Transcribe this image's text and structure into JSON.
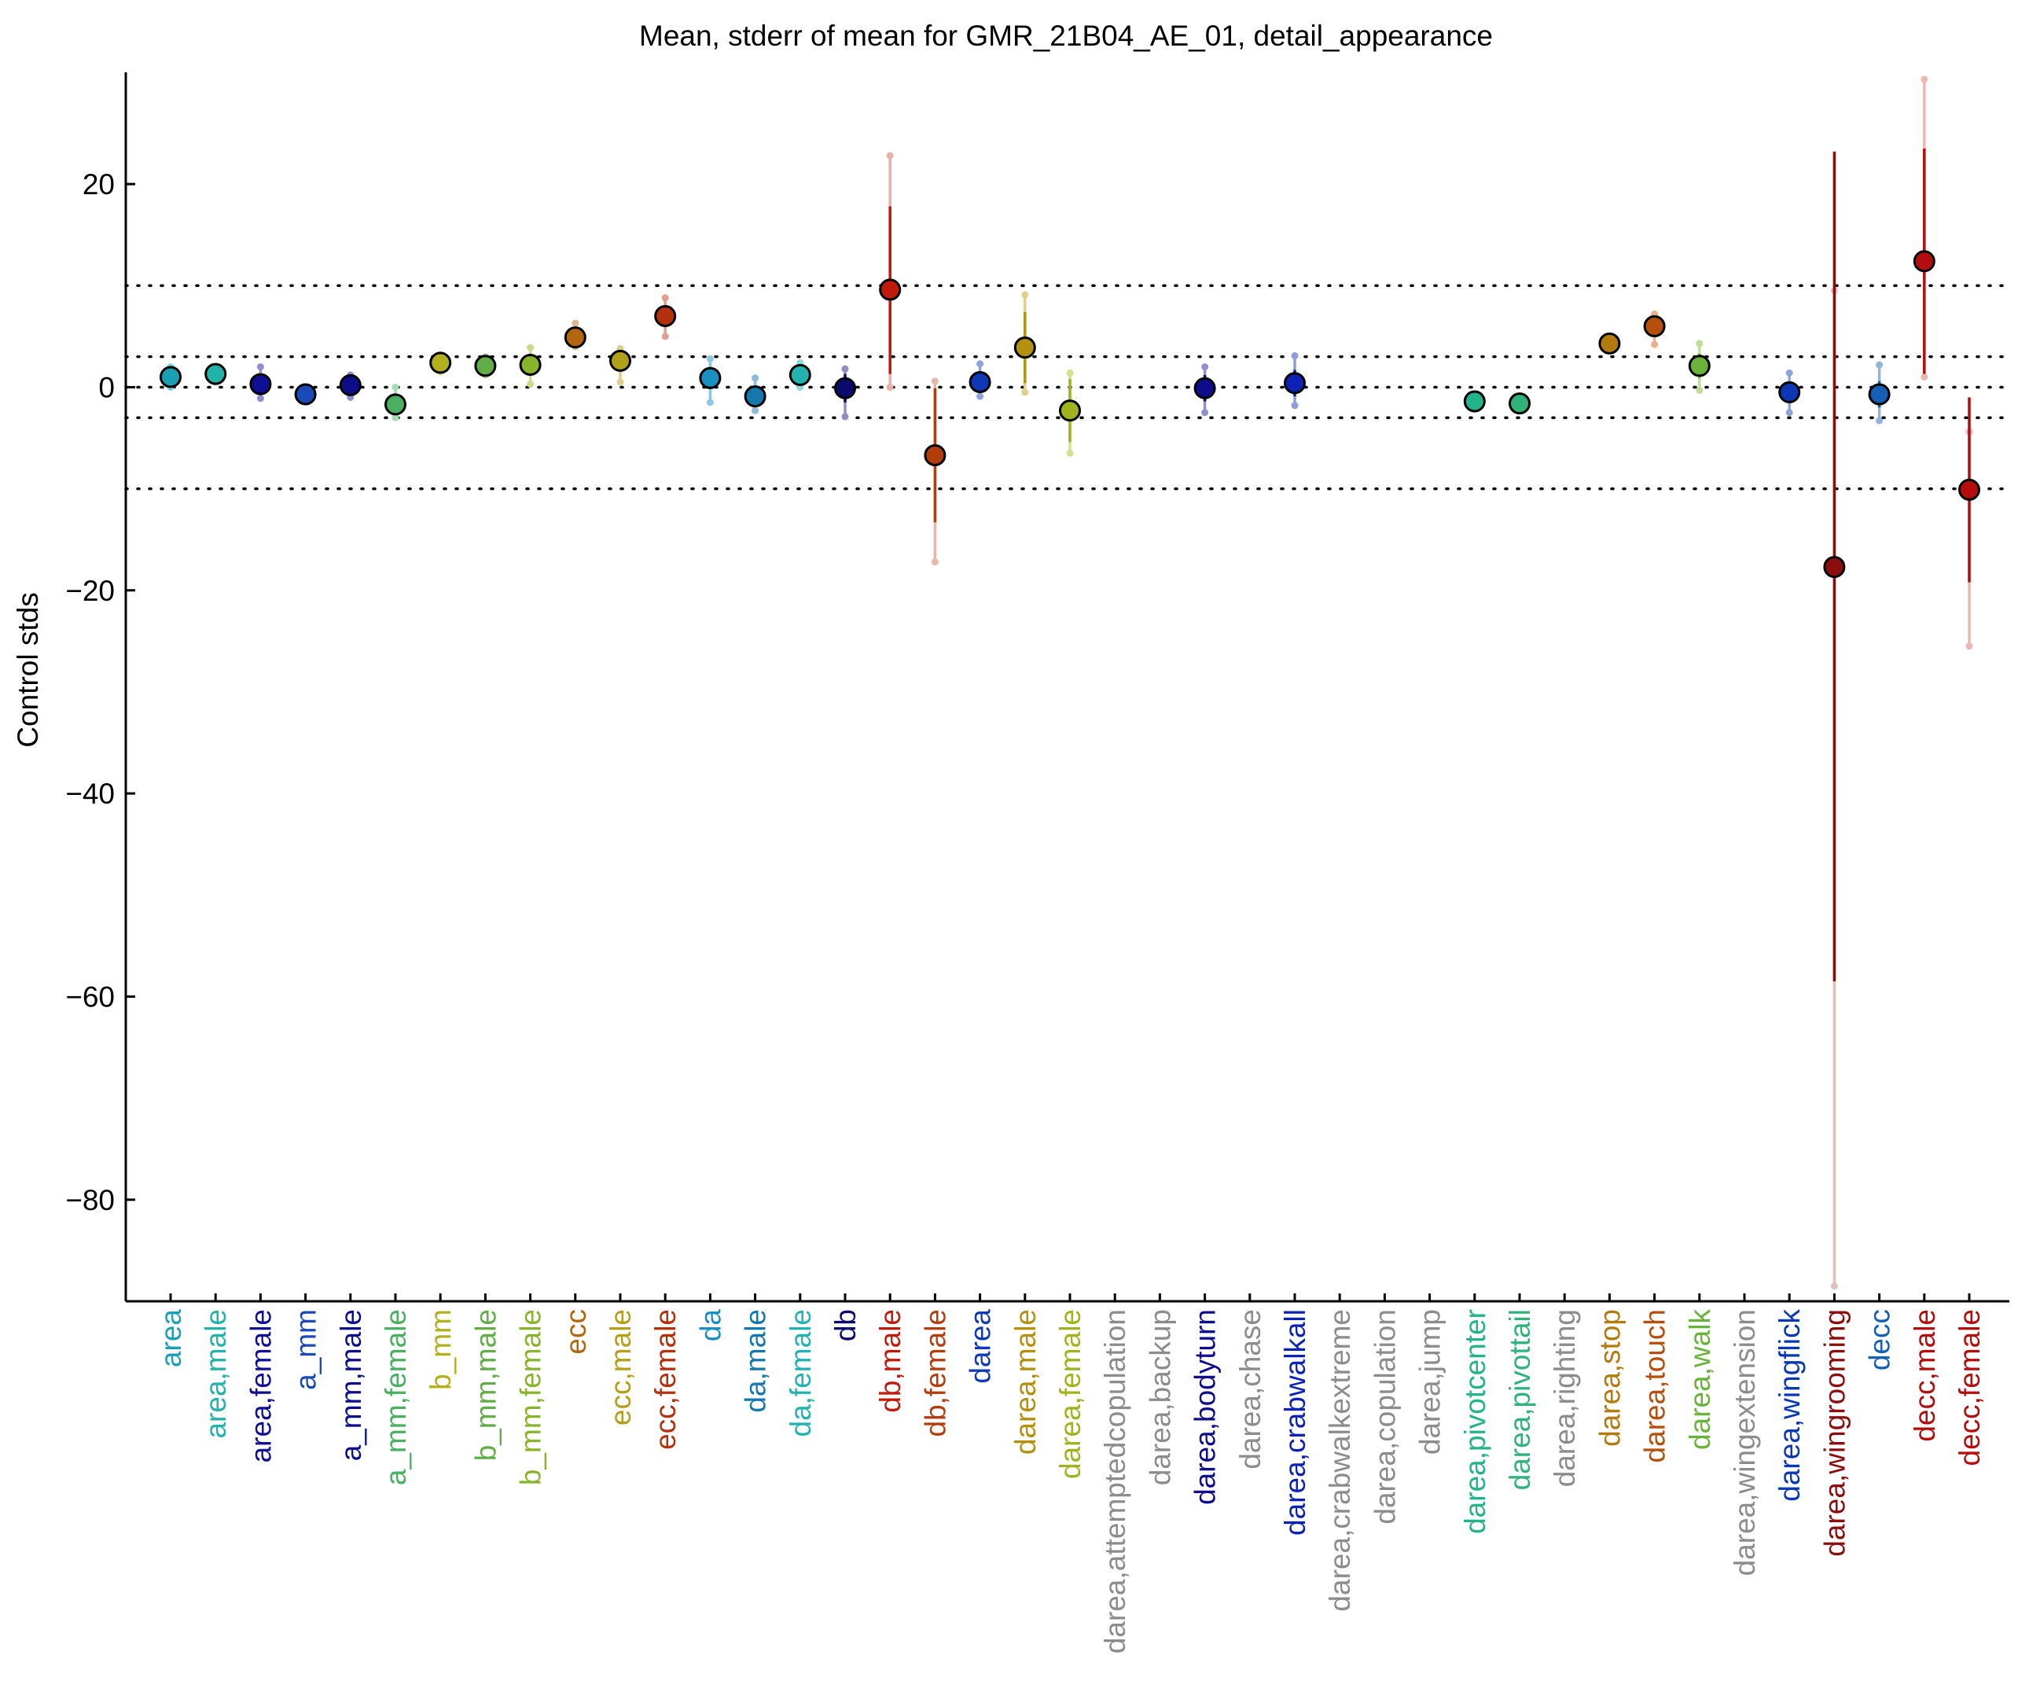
{
  "chart_data": {
    "type": "scatter",
    "title": "Mean, stderr of mean for GMR_21B04_AE_01, detail_appearance",
    "ylabel": "Control stds",
    "xlabel": "",
    "ylim": [
      -90,
      31
    ],
    "yticks": [
      20,
      0,
      -20,
      -40,
      -60,
      -80
    ],
    "reference_lines": [
      10,
      3,
      0,
      -3,
      -10
    ],
    "grid": false,
    "legend": "none",
    "categories": [
      "area",
      "area,male",
      "area,female",
      "a_mm",
      "a_mm,male",
      "a_mm,female",
      "b_mm",
      "b_mm,male",
      "b_mm,female",
      "ecc",
      "ecc,male",
      "ecc,female",
      "da",
      "da,male",
      "da,female",
      "db",
      "db,male",
      "db,female",
      "darea",
      "darea,male",
      "darea,female",
      "darea,attemptedcopulation",
      "darea,backup",
      "darea,bodyturn",
      "darea,chase",
      "darea,crabwalkall",
      "darea,crabwalkextreme",
      "darea,copulation",
      "darea,jump",
      "darea,pivotcenter",
      "darea,pivottail",
      "darea,righting",
      "darea,stop",
      "darea,touch",
      "darea,walk",
      "darea,wingextension",
      "darea,wingflick",
      "darea,wingrooming",
      "decc",
      "decc,male",
      "decc,female"
    ],
    "label_colors": [
      "#1a9fb5",
      "#22b3a8",
      "#0f0f96",
      "#1b49b5",
      "#0d0d8c",
      "#48b060",
      "#b3b01e",
      "#62ad46",
      "#89b32a",
      "#b3660d",
      "#b3a01a",
      "#b3300d",
      "#1a90c0",
      "#1578ad",
      "#22b3b0",
      "#0a0a6e",
      "#c01a0a",
      "#b33d0a",
      "#1038b5",
      "#b3900d",
      "#a0b31e",
      "#8c8c8c",
      "#8c8c8c",
      "#0d0d8c",
      "#8c8c8c",
      "#0d22b5",
      "#8c8c8c",
      "#8c8c8c",
      "#8c8c8c",
      "#22b38a",
      "#30b37a",
      "#8c8c8c",
      "#b37a0d",
      "#b3500d",
      "#6ab33a",
      "#8c8c8c",
      "#0a38b3",
      "#8c0d0d",
      "#1560b5",
      "#b30d0d",
      "#b30d0d"
    ],
    "points": [
      {
        "mean": 1.0,
        "se_lo": 0.4,
        "se_hi": 1.6,
        "ext_lo": 0.0,
        "ext_hi": 2.0,
        "color": "#1a9fb5",
        "bar": "#7fd0e0"
      },
      {
        "mean": 1.3,
        "se_lo": 0.8,
        "se_hi": 1.8,
        "ext_lo": 0.5,
        "ext_hi": 2.0,
        "color": "#22b3a8",
        "bar": "#8fdcd4"
      },
      {
        "mean": 0.3,
        "se_lo": -0.5,
        "se_hi": 1.1,
        "ext_lo": -1.1,
        "ext_hi": 2.0,
        "color": "#0f0f96",
        "bar": "#9090d0"
      },
      {
        "mean": -0.7,
        "se_lo": -1.1,
        "se_hi": -0.3,
        "ext_lo": -1.3,
        "ext_hi": 0.0,
        "color": "#1b49b5",
        "bar": "#90a8dc"
      },
      {
        "mean": 0.2,
        "se_lo": -0.4,
        "se_hi": 0.8,
        "ext_lo": -1.0,
        "ext_hi": 1.2,
        "color": "#0d0d8c",
        "bar": "#9090cc"
      },
      {
        "mean": -1.7,
        "se_lo": -2.3,
        "se_hi": -1.1,
        "ext_lo": -3.0,
        "ext_hi": 0.0,
        "color": "#48b060",
        "bar": "#a8dcb4"
      },
      {
        "mean": 2.4,
        "se_lo": 1.9,
        "se_hi": 2.9,
        "ext_lo": 1.5,
        "ext_hi": 3.2,
        "color": "#b3b01e",
        "bar": "#dcdc8c"
      },
      {
        "mean": 2.1,
        "se_lo": 1.6,
        "se_hi": 2.6,
        "ext_lo": 1.2,
        "ext_hi": 3.0,
        "color": "#62ad46",
        "bar": "#b0d8a0"
      },
      {
        "mean": 2.2,
        "se_lo": 1.2,
        "se_hi": 3.2,
        "ext_lo": 0.3,
        "ext_hi": 3.9,
        "color": "#89b32a",
        "bar": "#c8dc8c"
      },
      {
        "mean": 4.9,
        "se_lo": 4.3,
        "se_hi": 5.5,
        "ext_lo": 4.0,
        "ext_hi": 6.3,
        "color": "#b3660d",
        "bar": "#e0b48c"
      },
      {
        "mean": 2.6,
        "se_lo": 1.8,
        "se_hi": 3.4,
        "ext_lo": 0.5,
        "ext_hi": 3.8,
        "color": "#b3a01a",
        "bar": "#dcd08c"
      },
      {
        "mean": 7.0,
        "se_lo": 6.0,
        "se_hi": 8.0,
        "ext_lo": 5.0,
        "ext_hi": 8.8,
        "color": "#b3300d",
        "bar": "#e0a090"
      },
      {
        "mean": 0.9,
        "se_lo": -0.2,
        "se_hi": 2.0,
        "ext_lo": -1.5,
        "ext_hi": 2.8,
        "color": "#1a90c0",
        "bar": "#8cc8e0"
      },
      {
        "mean": -0.9,
        "se_lo": -1.6,
        "se_hi": -0.2,
        "ext_lo": -2.3,
        "ext_hi": 0.9,
        "color": "#1578ad",
        "bar": "#8cbcd8"
      },
      {
        "mean": 1.2,
        "se_lo": 0.6,
        "se_hi": 1.8,
        "ext_lo": 0.0,
        "ext_hi": 2.4,
        "color": "#22b3b0",
        "bar": "#8cdcdc"
      },
      {
        "mean": -0.1,
        "se_lo": -1.5,
        "se_hi": 1.3,
        "ext_lo": -2.9,
        "ext_hi": 1.8,
        "color": "#0a0a6e",
        "bar": "#9090c0"
      },
      {
        "mean": 9.6,
        "se_lo": 1.3,
        "se_hi": 17.8,
        "ext_lo": 0.0,
        "ext_hi": 22.8,
        "color": "#c01a0a",
        "bar": "#e8b0a8"
      },
      {
        "mean": -6.7,
        "se_lo": -13.3,
        "se_hi": -0.1,
        "ext_lo": -17.2,
        "ext_hi": 0.6,
        "color": "#b33d0a",
        "bar": "#e8b8a8"
      },
      {
        "mean": 0.5,
        "se_lo": -0.4,
        "se_hi": 1.4,
        "ext_lo": -0.9,
        "ext_hi": 2.3,
        "color": "#1038b5",
        "bar": "#90a4dc"
      },
      {
        "mean": 3.9,
        "se_lo": 0.4,
        "se_hi": 7.4,
        "ext_lo": -0.5,
        "ext_hi": 9.1,
        "color": "#b3900d",
        "bar": "#e0d08c"
      },
      {
        "mean": -2.3,
        "se_lo": -5.4,
        "se_hi": 0.8,
        "ext_lo": -6.5,
        "ext_hi": 1.4,
        "color": "#a0b31e",
        "bar": "#d4e08c"
      },
      null,
      null,
      {
        "mean": -0.1,
        "se_lo": -1.4,
        "se_hi": 1.2,
        "ext_lo": -2.5,
        "ext_hi": 2.0,
        "color": "#0d0d8c",
        "bar": "#9090cc"
      },
      null,
      {
        "mean": 0.4,
        "se_lo": -0.9,
        "se_hi": 1.7,
        "ext_lo": -1.8,
        "ext_hi": 3.1,
        "color": "#0d22b5",
        "bar": "#909cdc"
      },
      null,
      null,
      null,
      {
        "mean": -1.4,
        "se_lo": -1.8,
        "se_hi": -1.0,
        "ext_lo": -2.0,
        "ext_hi": -0.8,
        "color": "#22b38a",
        "bar": "#8cdcc4"
      },
      {
        "mean": -1.6,
        "se_lo": -2.0,
        "se_hi": -1.2,
        "ext_lo": -2.2,
        "ext_hi": -1.0,
        "color": "#30b37a",
        "bar": "#98dcbc"
      },
      null,
      {
        "mean": 4.3,
        "se_lo": 3.9,
        "se_hi": 4.7,
        "ext_lo": 3.6,
        "ext_hi": 5.0,
        "color": "#b37a0d",
        "bar": "#e0c48c"
      },
      {
        "mean": 6.0,
        "se_lo": 5.1,
        "se_hi": 6.9,
        "ext_lo": 4.2,
        "ext_hi": 7.2,
        "color": "#b3500d",
        "bar": "#e8b090"
      },
      {
        "mean": 2.1,
        "se_lo": 0.9,
        "se_hi": 3.3,
        "ext_lo": -0.3,
        "ext_hi": 4.3,
        "color": "#6ab33a",
        "bar": "#c0dc98"
      },
      null,
      {
        "mean": -0.5,
        "se_lo": -1.5,
        "se_hi": 0.5,
        "ext_lo": -2.5,
        "ext_hi": 1.4,
        "color": "#0a38b3",
        "bar": "#90a4dc"
      },
      {
        "mean": -17.7,
        "se_lo": -58.5,
        "se_hi": 23.2,
        "ext_lo": -88.5,
        "ext_hi": 9.5,
        "color": "#8c0d0d",
        "bar": "#e0c0bc"
      },
      {
        "mean": -0.7,
        "se_lo": -2.0,
        "se_hi": 0.6,
        "ext_lo": -3.3,
        "ext_hi": 2.2,
        "color": "#1560b5",
        "bar": "#90b4dc"
      },
      {
        "mean": 12.4,
        "se_lo": 1.3,
        "se_hi": 23.5,
        "ext_lo": 1.0,
        "ext_hi": 30.3,
        "color": "#b30d0d",
        "bar": "#ecb8b4"
      },
      {
        "mean": -10.1,
        "se_lo": -19.2,
        "se_hi": -1.0,
        "ext_lo": -25.5,
        "ext_hi": -4.4,
        "color": "#b30d0d",
        "bar": "#ecb8b4"
      }
    ]
  }
}
